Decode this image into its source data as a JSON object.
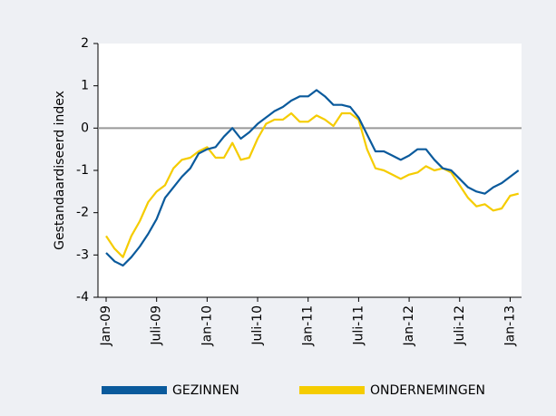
{
  "chart_data": {
    "type": "line",
    "ylabel": "Gestandaardiseerd index",
    "categories": [
      "Jan-09",
      null,
      null,
      null,
      null,
      null,
      "Juli-09",
      null,
      null,
      null,
      null,
      null,
      "Jan-10",
      null,
      null,
      null,
      null,
      null,
      "Juli-10",
      null,
      null,
      null,
      null,
      null,
      "Jan-11",
      null,
      null,
      null,
      null,
      null,
      "Juli-11",
      null,
      null,
      null,
      null,
      null,
      "Jan-12",
      null,
      null,
      null,
      null,
      null,
      "Juli-12",
      null,
      null,
      null,
      null,
      null,
      "Jan-13",
      null
    ],
    "series": [
      {
        "name": "GEZINNEN",
        "color": "#0a5a9c",
        "values": [
          -2.95,
          -3.15,
          -3.25,
          -3.05,
          -2.8,
          -2.5,
          -2.15,
          -1.65,
          -1.4,
          -1.15,
          -0.95,
          -0.6,
          -0.5,
          -0.45,
          -0.2,
          0,
          -0.25,
          -0.1,
          0.1,
          0.25,
          0.4,
          0.5,
          0.65,
          0.75,
          0.75,
          0.9,
          0.75,
          0.55,
          0.55,
          0.5,
          0.25,
          -0.15,
          -0.55,
          -0.55,
          -0.65,
          -0.75,
          -0.65,
          -0.5,
          -0.5,
          -0.75,
          -0.95,
          -1.0,
          -1.2,
          -1.4,
          -1.5,
          -1.55,
          -1.4,
          -1.3,
          -1.15,
          -1.0
        ]
      },
      {
        "name": "ONDERNEMINGEN",
        "color": "#f5cc00",
        "values": [
          -2.55,
          -2.85,
          -3.05,
          -2.55,
          -2.2,
          -1.75,
          -1.5,
          -1.35,
          -0.95,
          -0.75,
          -0.7,
          -0.55,
          -0.45,
          -0.7,
          -0.7,
          -0.35,
          -0.75,
          -0.7,
          -0.25,
          0.1,
          0.2,
          0.2,
          0.35,
          0.15,
          0.15,
          0.3,
          0.2,
          0.05,
          0.35,
          0.35,
          0.2,
          -0.5,
          -0.95,
          -1.0,
          -1.1,
          -1.2,
          -1.1,
          -1.05,
          -0.9,
          -1.0,
          -0.95,
          -1.05,
          -1.35,
          -1.65,
          -1.85,
          -1.8,
          -1.95,
          -1.9,
          -1.6,
          -1.55
        ]
      }
    ],
    "ylim": [
      -4,
      2
    ],
    "yticks": [
      -4,
      -3,
      -2,
      -1,
      0,
      1,
      2
    ]
  }
}
